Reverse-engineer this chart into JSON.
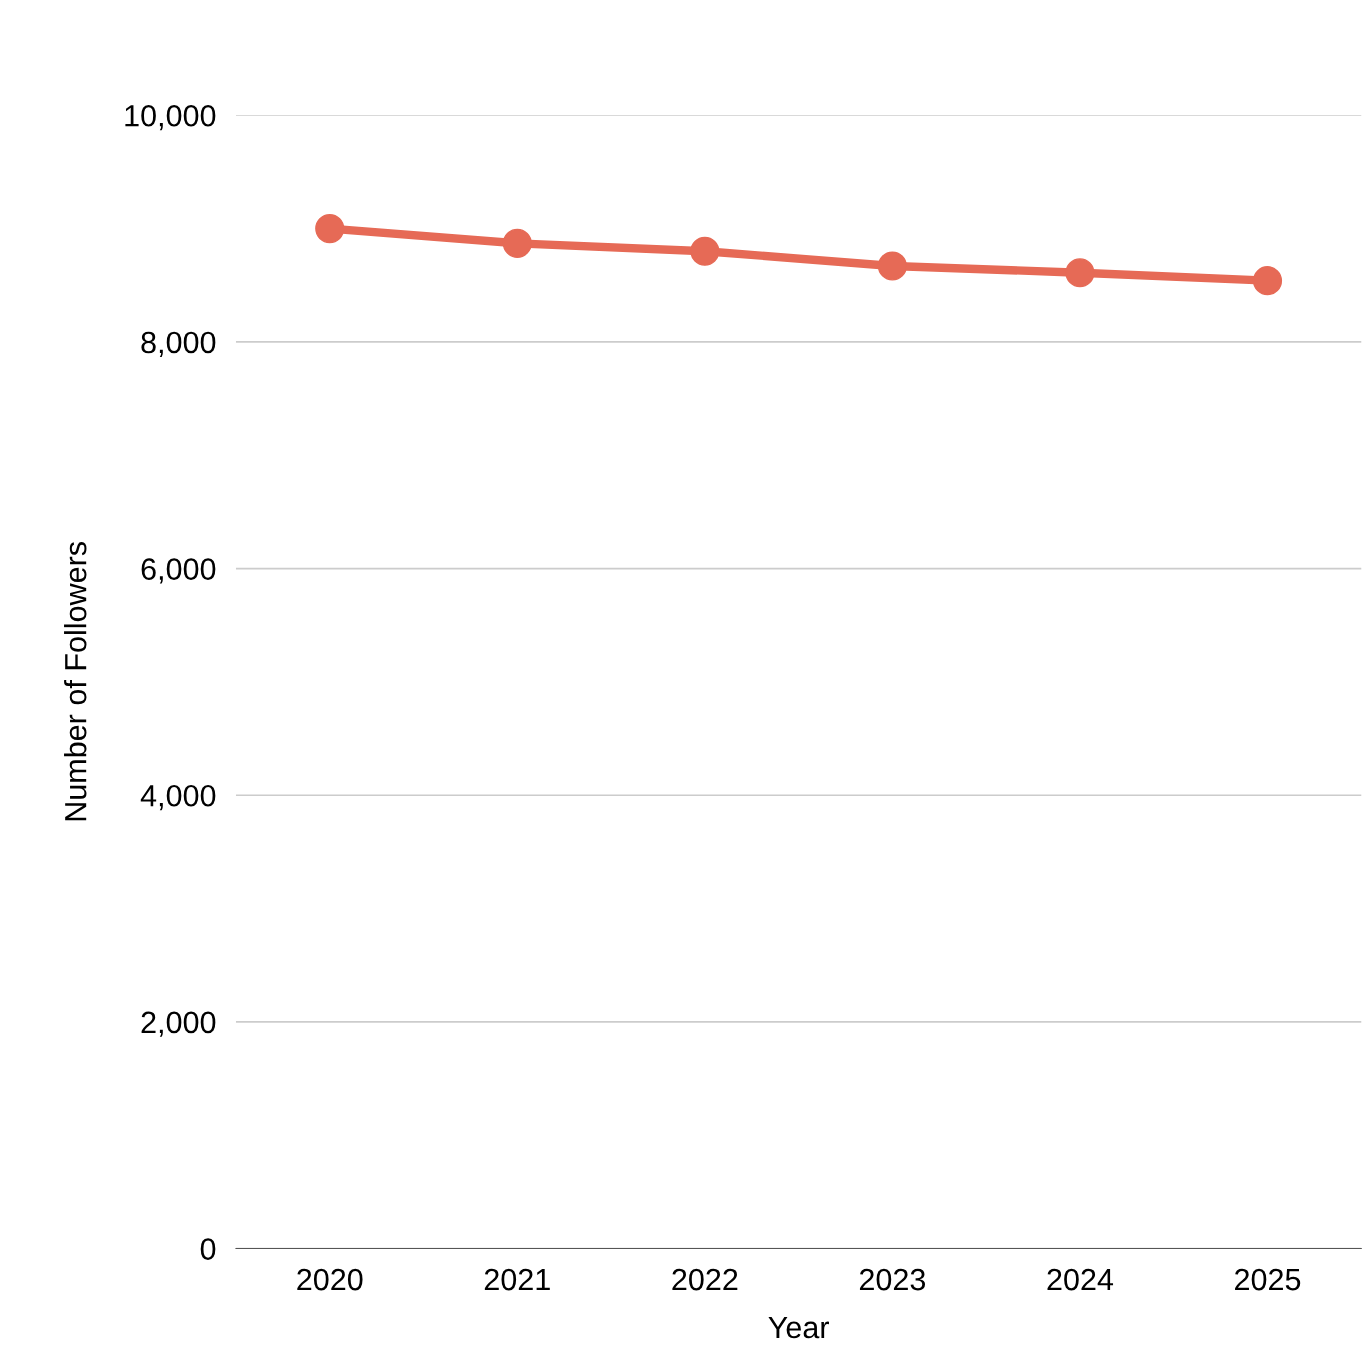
{
  "chart_data": {
    "type": "line",
    "xlabel": "Year",
    "ylabel": "Number of Followers",
    "categories": [
      "2020",
      "2021",
      "2022",
      "2023",
      "2024",
      "2025"
    ],
    "series": [
      {
        "color": "#e66a56",
        "values": [
          9000,
          8870,
          8800,
          8670,
          8610,
          8540
        ]
      }
    ],
    "ylim": [
      0,
      10000
    ],
    "yticks": [
      {
        "value": 0,
        "label": "0"
      },
      {
        "value": 2000,
        "label": "2,000"
      },
      {
        "value": 4000,
        "label": "4,000"
      },
      {
        "value": 6000,
        "label": "6,000"
      },
      {
        "value": 8000,
        "label": "8,000"
      },
      {
        "value": 10000,
        "label": "10,000"
      }
    ],
    "grid": "y",
    "marker": "circle",
    "line_style": "solid"
  }
}
